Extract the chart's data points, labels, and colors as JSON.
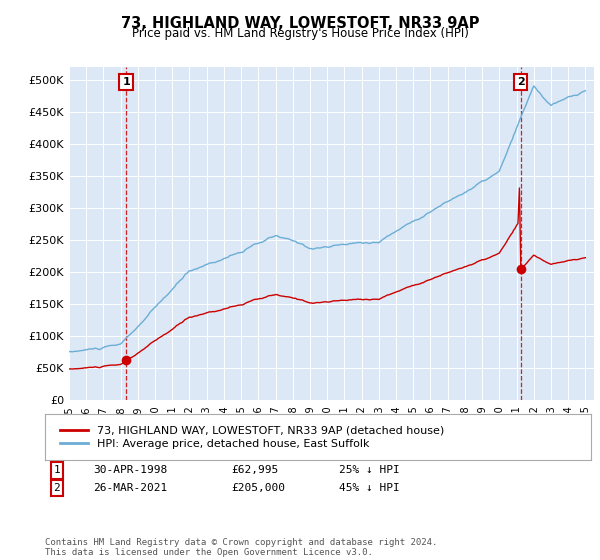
{
  "title": "73, HIGHLAND WAY, LOWESTOFT, NR33 9AP",
  "subtitle": "Price paid vs. HM Land Registry's House Price Index (HPI)",
  "ylabel_ticks": [
    "£0",
    "£50K",
    "£100K",
    "£150K",
    "£200K",
    "£250K",
    "£300K",
    "£350K",
    "£400K",
    "£450K",
    "£500K"
  ],
  "ytick_values": [
    0,
    50000,
    100000,
    150000,
    200000,
    250000,
    300000,
    350000,
    400000,
    450000,
    500000
  ],
  "ylim": [
    0,
    520000
  ],
  "xlim_start": 1995.0,
  "xlim_end": 2025.5,
  "purchase1_x": 1998.33,
  "purchase1_y": 62995,
  "purchase2_x": 2021.23,
  "purchase2_y": 205000,
  "purchase1_label": "1",
  "purchase2_label": "2",
  "purchase1_date": "30-APR-1998",
  "purchase1_price": "£62,995",
  "purchase1_hpi": "25% ↓ HPI",
  "purchase2_date": "26-MAR-2021",
  "purchase2_price": "£205,000",
  "purchase2_hpi": "45% ↓ HPI",
  "hpi_color": "#6baed6",
  "price_color": "#cc0000",
  "background_color": "#dce8f5",
  "legend_label_price": "73, HIGHLAND WAY, LOWESTOFT, NR33 9AP (detached house)",
  "legend_label_hpi": "HPI: Average price, detached house, East Suffolk",
  "footer": "Contains HM Land Registry data © Crown copyright and database right 2024.\nThis data is licensed under the Open Government Licence v3.0.",
  "xtick_years": [
    1995,
    1996,
    1997,
    1998,
    1999,
    2000,
    2001,
    2002,
    2003,
    2004,
    2005,
    2006,
    2007,
    2008,
    2009,
    2010,
    2011,
    2012,
    2013,
    2014,
    2015,
    2016,
    2017,
    2018,
    2019,
    2020,
    2021,
    2022,
    2023,
    2024,
    2025
  ]
}
